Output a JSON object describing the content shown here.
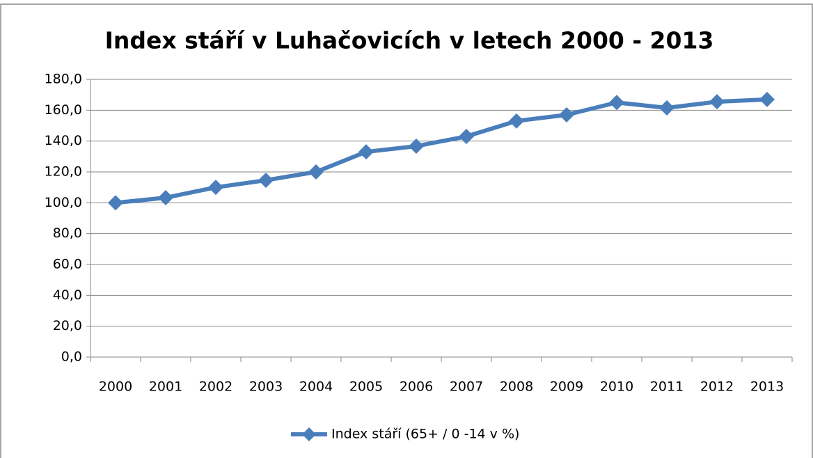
{
  "chart_data": {
    "type": "line",
    "title": "Index stáří v Luhačovicích v letech 2000 - 2013",
    "categories": [
      "2000",
      "2001",
      "2002",
      "2003",
      "2004",
      "2005",
      "2006",
      "2007",
      "2008",
      "2009",
      "2010",
      "2011",
      "2012",
      "2013"
    ],
    "series": [
      {
        "name": "Index stáří (65+ / 0 -14 v %)",
        "color": "#4a7ebb",
        "values": [
          100,
          103.3,
          110,
          114.6,
          120,
          133,
          136.7,
          143,
          153,
          157,
          165,
          161.5,
          165.5,
          167
        ]
      }
    ],
    "ylim": [
      0,
      180
    ],
    "yticks": [
      {
        "value": 0,
        "label": "0,0"
      },
      {
        "value": 20,
        "label": "20,0"
      },
      {
        "value": 40,
        "label": "40,0"
      },
      {
        "value": 60,
        "label": "60,0"
      },
      {
        "value": 80,
        "label": "80,0"
      },
      {
        "value": 100,
        "label": "100,0"
      },
      {
        "value": 120,
        "label": "120,0"
      },
      {
        "value": 140,
        "label": "140,0"
      },
      {
        "value": 160,
        "label": "160,0"
      },
      {
        "value": 180,
        "label": "180,0"
      }
    ],
    "grid": true,
    "legend": "bottom"
  }
}
